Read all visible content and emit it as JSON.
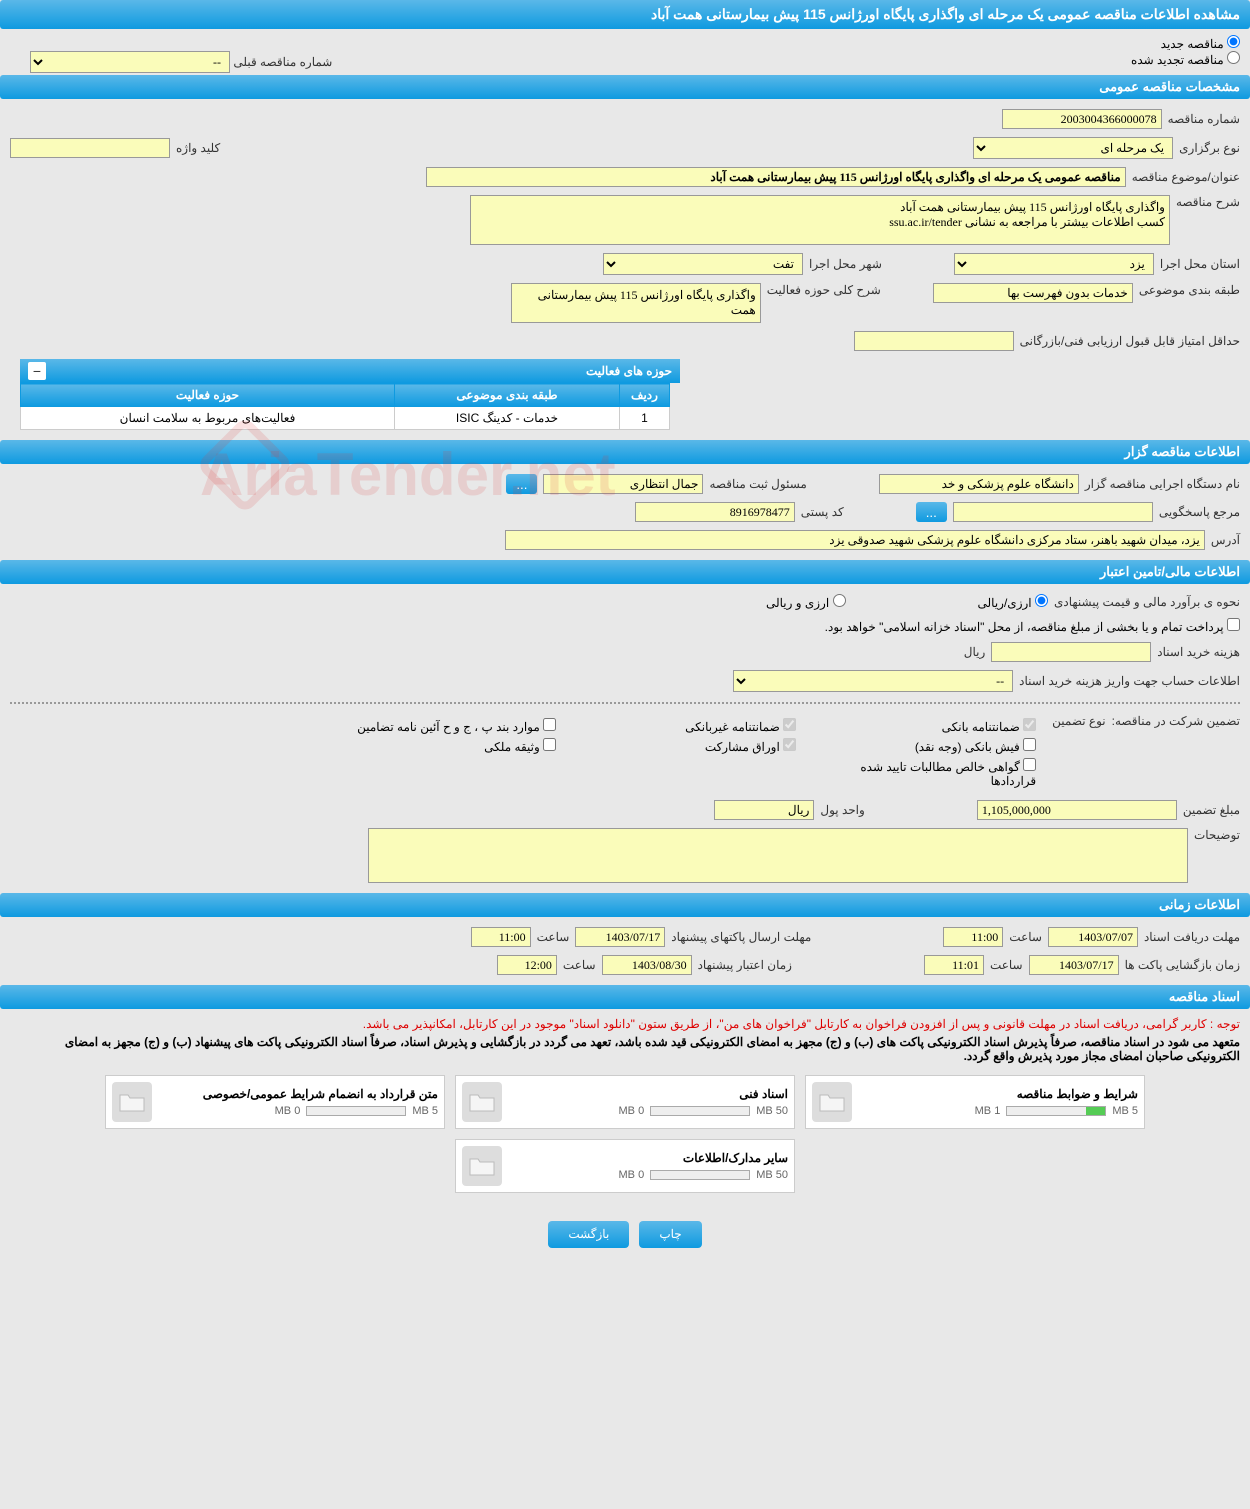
{
  "page_title": "مشاهده اطلاعات مناقصه عمومی یک مرحله ای واگذاری پایگاه اورژانس 115 پیش بیمارستانی همت آباد",
  "radio": {
    "new_tender": "مناقصه جدید",
    "renewed_tender": "مناقصه تجدید شده",
    "selected": "new"
  },
  "prev_tender_label": "شماره مناقصه قبلی",
  "sections": {
    "general": "مشخصات مناقصه عمومی",
    "organizer": "اطلاعات مناقصه گزار",
    "financial": "اطلاعات مالی/تامین اعتبار",
    "timing": "اطلاعات زمانی",
    "documents": "اسناد مناقصه"
  },
  "general": {
    "tender_no_label": "شماره مناقصه",
    "tender_no": "2003004366000078",
    "holding_type_label": "نوع برگزاری",
    "holding_type": "یک مرحله ای",
    "subject_label": "عنوان/موضوع مناقصه",
    "subject": "مناقصه عمومی یک مرحله ای واگذاری پایگاه اورژانس 115 پیش بیمارستانی همت آباد",
    "description_label": "شرح مناقصه",
    "description": "واگذاری پایگاه اورژانس 115 پیش بیمارستانی همت آباد\nکسب اطلاعات بیشتر با مراجعه به نشانی ssu.ac.ir/tender",
    "province_label": "استان محل اجرا",
    "province": "یزد",
    "city_label": "شهر محل اجرا",
    "city": "تفت",
    "category_label": "طبقه بندی موضوعی",
    "category": "خدمات بدون فهرست بها",
    "activity_scope_label": "شرح کلی حوزه فعالیت",
    "activity_scope": "واگذاری پایگاه اورژانس 115 پیش بیمارستانی همت",
    "keyword_label": "کلید واژه",
    "keyword": "",
    "min_score_label": "حداقل امتیاز قابل قبول ارزیابی فنی/بازرگانی",
    "min_score": ""
  },
  "activity_table": {
    "caption": "حوزه های فعالیت",
    "cols": {
      "row": "ردیف",
      "category": "طبقه بندی موضوعی",
      "scope": "حوزه فعالیت"
    },
    "rows": [
      {
        "row": "1",
        "category": "خدمات - کدینگ ISIC",
        "scope": "فعالیت‌های مربوط به سلامت انسان"
      }
    ]
  },
  "organizer": {
    "exec_label": "نام دستگاه اجرایی مناقصه گزار",
    "exec_name": "دانشگاه علوم پزشکی و خد",
    "registrar_label": "مسئول ثبت مناقصه",
    "registrar_name": "جمال انتظاری",
    "responder_label": "مرجع پاسخگویی",
    "responder": "",
    "postal_label": "کد پستی",
    "postal": "8916978477",
    "address_label": "آدرس",
    "address": "یزد، میدان شهید باهنر، ستاد مرکزی دانشگاه علوم پزشکی شهید صدوقی یزد"
  },
  "financial": {
    "estimate_label": "نحوه ی برآورد مالی و قیمت پیشنهادی",
    "opt_rial": "ارزی/ریالی",
    "opt_currency": "ارزی و ریالی",
    "payment_note": "پرداخت تمام و یا بخشی از مبلغ مناقصه، از محل \"اسناد خزانه اسلامی\" خواهد بود.",
    "doc_cost_label": "هزینه خرید اسناد",
    "doc_cost": "",
    "doc_cost_unit": "ریال",
    "account_label": "اطلاعات حساب جهت واریز هزینه خرید اسناد",
    "guarantee_section_label": "تضمین شرکت در مناقصه:",
    "guarantee_type_label": "نوع تضمین",
    "gt_bank": "ضمانتنامه بانکی",
    "gt_nonbank": "ضمانتنامه غیربانکی",
    "gt_regulation": "موارد بند پ ، ج و ح آئین نامه تضامین",
    "gt_receipt": "فیش بانکی (وجه نقد)",
    "gt_participation": "اوراق مشارکت",
    "gt_property": "وثیقه ملکی",
    "gt_claims": "گواهی خالص مطالبات تایید شده قراردادها",
    "guarantee_amount_label": "مبلغ تضمین",
    "guarantee_amount": "1,105,000,000",
    "currency_unit_label": "واحد پول",
    "currency_unit": "ریال",
    "notes_label": "توضیحات",
    "notes": ""
  },
  "timing": {
    "doc_deadline_label": "مهلت دریافت اسناد",
    "doc_deadline_date": "1403/07/07",
    "time_label": "ساعت",
    "doc_deadline_time": "11:00",
    "packet_deadline_label": "مهلت ارسال پاکتهای پیشنهاد",
    "packet_deadline_date": "1403/07/17",
    "packet_deadline_time": "11:00",
    "opening_label": "زمان بازگشایی پاکت ها",
    "opening_date": "1403/07/17",
    "opening_time": "11:01",
    "validity_label": "زمان اعتبار پیشنهاد",
    "validity_date": "1403/08/30",
    "validity_time": "12:00"
  },
  "documents": {
    "notice1": "توجه : کاربر گرامی، دریافت اسناد در مهلت قانونی و پس از افزودن فراخوان به کارتابل \"فراخوان های من\"، از طریق ستون \"دانلود اسناد\" موجود در این کارتابل، امکانپذیر می باشد.",
    "notice2": "متعهد می شود در اسناد مناقصه، صرفاً پذیرش اسناد الکترونیکی پاکت های (ب) و (ج) مجهز به امضای الکترونیکی قید شده باشد، تعهد می گردد در بازگشایی و پذیرش اسناد، صرفاً اسناد الکترونیکی پاکت های پیشنهاد (ب) و (ج) مجهز به امضای الکترونیکی صاحبان امضای مجاز مورد پذیرش واقع گردد.",
    "cards": [
      {
        "title": "شرایط و ضوابط مناقصه",
        "max": "5 MB",
        "used": "1 MB",
        "fill_pct": 20
      },
      {
        "title": "اسناد فنی",
        "max": "50 MB",
        "used": "0 MB",
        "fill_pct": 0
      },
      {
        "title": "متن قرارداد به انضمام شرایط عمومی/خصوصی",
        "max": "5 MB",
        "used": "0 MB",
        "fill_pct": 0
      },
      {
        "title": "سایر مدارک/اطلاعات",
        "max": "50 MB",
        "used": "0 MB",
        "fill_pct": 0
      }
    ]
  },
  "buttons": {
    "print": "چاپ",
    "back": "بازگشت",
    "more": "..."
  },
  "colors": {
    "header_grad_top": "#5ab8e8",
    "header_grad_bottom": "#0e9ae0",
    "field_bg": "#fafcba",
    "page_bg": "#e8e8e8"
  }
}
